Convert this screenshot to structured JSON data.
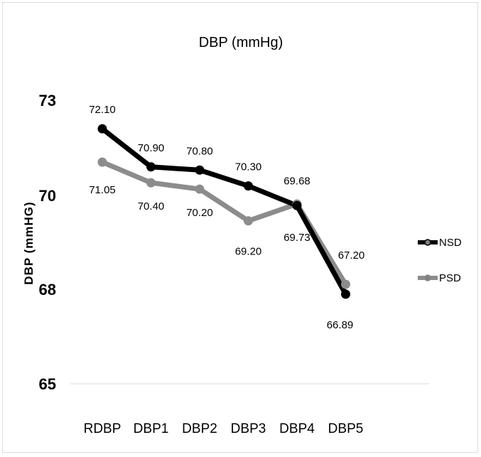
{
  "chart_data": {
    "type": "line",
    "title": "DBP (mmHg)",
    "ylabel": "DBP (mmHG)",
    "xlabel": "",
    "categories": [
      "RDBP",
      "DBP1",
      "DBP2",
      "DBP3",
      "DBP4",
      "DBP5"
    ],
    "yticks": [
      "73",
      "70",
      "68",
      "65"
    ],
    "series": [
      {
        "name": "NSD",
        "color": "#000000",
        "values": [
          72.1,
          70.9,
          70.8,
          70.3,
          69.68,
          66.89
        ],
        "labels": [
          "72.10",
          "70.90",
          "70.80",
          "70.30",
          "69.68",
          "66.89"
        ]
      },
      {
        "name": "PSD",
        "color": "#8c8c8c",
        "values": [
          71.05,
          70.4,
          70.2,
          69.2,
          69.73,
          67.2
        ],
        "labels": [
          "71.05",
          "70.40",
          "70.20",
          "69.20",
          "69.73",
          "67.20"
        ]
      }
    ],
    "grid": "horizontal at bottom only",
    "legend_position": "right"
  }
}
